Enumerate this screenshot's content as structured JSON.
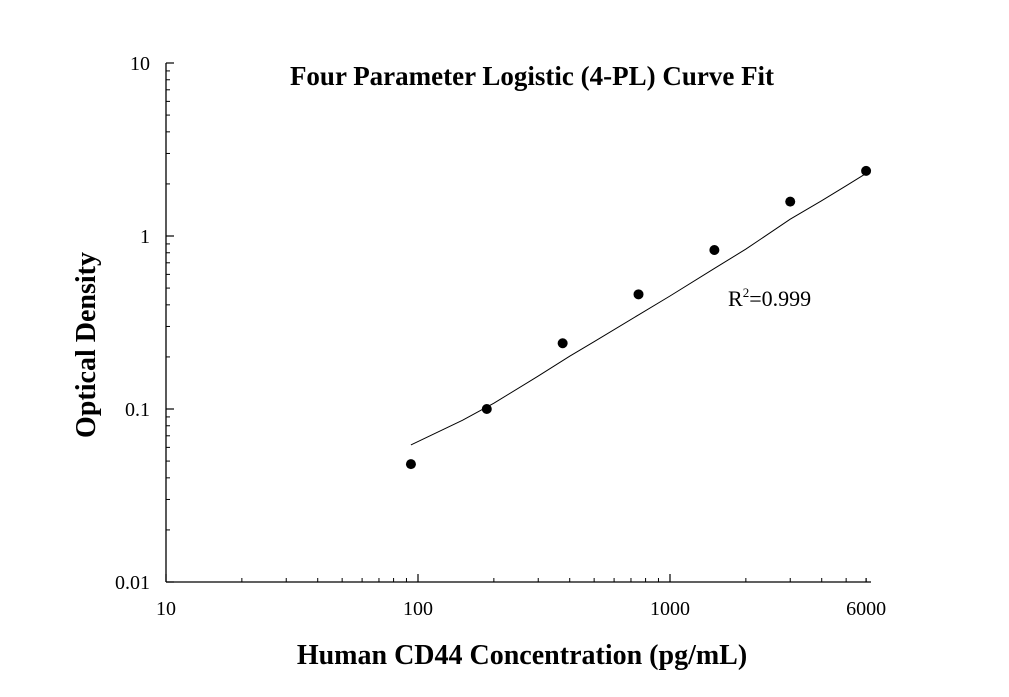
{
  "chart_data": {
    "type": "scatter",
    "title": "Four Parameter Logistic (4-PL) Curve Fit",
    "xlabel": "Human CD44 Concentration (pg/mL)",
    "ylabel": "Optical Density",
    "x_scale": "log",
    "y_scale": "log",
    "xlim": [
      10,
      7000
    ],
    "ylim": [
      0.01,
      10
    ],
    "x_ticks": [
      {
        "value": 10,
        "label": "10"
      },
      {
        "value": 100,
        "label": "100"
      },
      {
        "value": 1000,
        "label": "1000"
      },
      {
        "value": 6000,
        "label": "6000"
      }
    ],
    "y_ticks": [
      {
        "value": 0.01,
        "label": "0.01"
      },
      {
        "value": 0.1,
        "label": "0.1"
      },
      {
        "value": 1,
        "label": "1"
      },
      {
        "value": 10,
        "label": "10"
      }
    ],
    "grid": false,
    "series": [
      {
        "type": "scatter",
        "x": [
          93.75,
          187.5,
          375,
          750,
          1500,
          3000,
          6000
        ],
        "y": [
          0.048,
          0.1,
          0.24,
          0.46,
          0.83,
          1.58,
          2.38
        ]
      },
      {
        "type": "line",
        "x": [
          93.75,
          150,
          200,
          300,
          400,
          500,
          750,
          1000,
          1500,
          2000,
          3000,
          4000,
          5000,
          6000
        ],
        "y": [
          0.062,
          0.086,
          0.108,
          0.155,
          0.202,
          0.245,
          0.35,
          0.45,
          0.65,
          0.84,
          1.25,
          1.6,
          1.95,
          2.3
        ]
      }
    ],
    "annotations": [
      {
        "base": "R",
        "sup": "2",
        "text": "=0.999"
      }
    ]
  }
}
